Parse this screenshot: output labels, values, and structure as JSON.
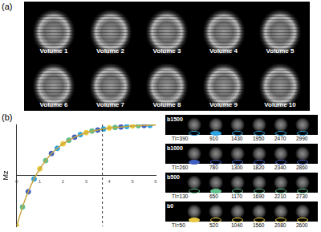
{
  "panels": [
    {
      "label": "(a)",
      "volumes": [
        "Volume 1",
        "Volume 2",
        "Volume 3",
        "Volume 4",
        "Volume 5",
        "Volume 6",
        "Volume 7",
        "Volume 8",
        "Volume 9",
        "Volume 10"
      ]
    },
    {
      "label": "(b)"
    }
  ],
  "chart_data": {
    "type": "line",
    "y_label": "Mz",
    "xlim": [
      0,
      6
    ],
    "xticks": [
      0,
      1,
      2,
      3,
      4,
      5,
      6
    ],
    "ylim": [
      -1,
      1
    ],
    "tick_labels": "x",
    "grid": false,
    "vline": 3.7,
    "series": [
      {
        "type": "line",
        "color": "#c9a640",
        "x": [
          0,
          0.25,
          0.5,
          0.75,
          1,
          1.25,
          1.5,
          1.75,
          2,
          2.5,
          3,
          3.5,
          4,
          4.5,
          5,
          5.5,
          6
        ],
        "values": [
          -1,
          -0.62,
          -0.32,
          -0.07,
          0.13,
          0.29,
          0.43,
          0.53,
          0.62,
          0.75,
          0.84,
          0.89,
          0.93,
          0.95,
          0.97,
          0.98,
          0.99
        ]
      },
      {
        "name": "b0",
        "type": "scatter",
        "color": "#e8c840",
        "x": [
          0,
          1,
          2,
          3,
          4,
          5
        ],
        "values": [
          -1,
          0.13,
          0.62,
          0.84,
          0.93,
          0.97
        ]
      },
      {
        "name": "b500",
        "type": "scatter",
        "color": "#5fbf8a",
        "x": [
          0.25,
          1.25,
          2.25,
          3.25,
          4.25,
          5.25
        ],
        "values": [
          -0.62,
          0.29,
          0.69,
          0.87,
          0.94,
          0.975
        ]
      },
      {
        "name": "b1000",
        "type": "scatter",
        "color": "#3f5fc0",
        "x": [
          0.5,
          1.5,
          2.5,
          3.5,
          4.5,
          5.5
        ],
        "values": [
          -0.32,
          0.43,
          0.75,
          0.89,
          0.95,
          0.98
        ]
      },
      {
        "name": "b1500",
        "type": "scatter",
        "color": "#2fa3e0",
        "x": [
          0.75,
          1.75,
          2.75,
          3.75,
          4.75,
          5.75
        ],
        "values": [
          -0.07,
          0.53,
          0.8,
          0.91,
          0.96,
          0.98
        ]
      }
    ]
  },
  "ti_label": "TI=",
  "rows": [
    {
      "b": "b1500",
      "color": "#2fa3e0",
      "ti": [
        390,
        910,
        1430,
        1950,
        2470,
        2990
      ]
    },
    {
      "b": "b1000",
      "color": "#3f5fc0",
      "ti": [
        260,
        780,
        1300,
        1820,
        2340,
        2860
      ]
    },
    {
      "b": "b500",
      "color": "#5fbf8a",
      "ti": [
        130,
        650,
        1170,
        1690,
        2210,
        2730
      ]
    },
    {
      "b": "b0",
      "color": "#e8c840",
      "ti": [
        50,
        520,
        1040,
        1560,
        2080,
        2600
      ]
    }
  ]
}
